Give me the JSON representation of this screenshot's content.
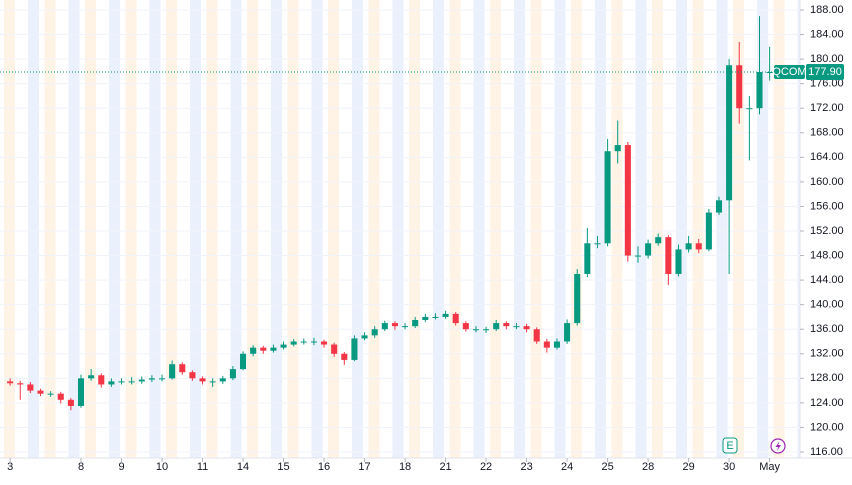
{
  "chart_data": {
    "type": "candlestick",
    "symbol": "QCOM",
    "up_color": "#089981",
    "down_color": "#f23645",
    "last_price": {
      "value": 177.9,
      "label": "177.90"
    },
    "events": [
      {
        "label": "E"
      }
    ],
    "xlim": [
      -1,
      78
    ],
    "xticks": [
      {
        "value": 0,
        "label": "3"
      },
      {
        "value": 7,
        "label": "8"
      },
      {
        "value": 11,
        "label": "9"
      },
      {
        "value": 15,
        "label": "10"
      },
      {
        "value": 19,
        "label": "11"
      },
      {
        "value": 23,
        "label": "14"
      },
      {
        "value": 27,
        "label": "15"
      },
      {
        "value": 31,
        "label": "16"
      },
      {
        "value": 35,
        "label": "17"
      },
      {
        "value": 39,
        "label": "18"
      },
      {
        "value": 43,
        "label": "21"
      },
      {
        "value": 47,
        "label": "22"
      },
      {
        "value": 51,
        "label": "23"
      },
      {
        "value": 55,
        "label": "24"
      },
      {
        "value": 59,
        "label": "25"
      },
      {
        "value": 63,
        "label": "28"
      },
      {
        "value": 67,
        "label": "29"
      },
      {
        "value": 71,
        "label": "30"
      },
      {
        "value": 75,
        "label": "May"
      }
    ],
    "ylim": [
      116,
      188
    ],
    "yticks": [
      {
        "value": 116,
        "label": "116.00"
      },
      {
        "value": 120,
        "label": "120.00"
      },
      {
        "value": 124,
        "label": "124.00"
      },
      {
        "value": 128,
        "label": "128.00"
      },
      {
        "value": 132,
        "label": "132.00"
      },
      {
        "value": 136,
        "label": "136.00"
      },
      {
        "value": 140,
        "label": "140.00"
      },
      {
        "value": 144,
        "label": "144.00"
      },
      {
        "value": 148,
        "label": "148.00"
      },
      {
        "value": 152,
        "label": "152.00"
      },
      {
        "value": 156,
        "label": "156.00"
      },
      {
        "value": 160,
        "label": "160.00"
      },
      {
        "value": 164,
        "label": "164.00"
      },
      {
        "value": 168,
        "label": "168.00"
      },
      {
        "value": 172,
        "label": "172.00"
      },
      {
        "value": 176,
        "label": "176.00"
      },
      {
        "value": 180,
        "label": "180.00"
      },
      {
        "value": 184,
        "label": "184.00"
      },
      {
        "value": 188,
        "label": "188.00"
      }
    ],
    "open": [
      127.5,
      127.2,
      127,
      126,
      125.5,
      125.5,
      124.5,
      123.5,
      128,
      128.5,
      127,
      127.5,
      127.5,
      127.5,
      127.8,
      128,
      128,
      130.3,
      129,
      128,
      127.5,
      127.5,
      128,
      129.5,
      132,
      133,
      132.5,
      133,
      133.5,
      134,
      134,
      134,
      133.5,
      132,
      131,
      134.5,
      135,
      136,
      137,
      136.5,
      136.5,
      137.5,
      138,
      138,
      138.5,
      137,
      136,
      136,
      136,
      137,
      136.5,
      136.5,
      136,
      134,
      133,
      134,
      137,
      145,
      150,
      150,
      165,
      166,
      148,
      148,
      150,
      151,
      145,
      149,
      150,
      149,
      155,
      157,
      179,
      172,
      172,
      177.9
    ],
    "high": [
      128,
      127.6,
      127.4,
      126.3,
      125.9,
      125.8,
      124.8,
      128.6,
      129.5,
      128.8,
      128,
      128,
      128.2,
      128.3,
      128.5,
      128.6,
      130.9,
      130.6,
      129.3,
      128.3,
      128,
      128.4,
      130,
      132.4,
      133.4,
      133.3,
      133.5,
      134,
      134.4,
      134.5,
      134.6,
      134.3,
      133.8,
      132.3,
      135,
      135.5,
      136.5,
      137.4,
      137.3,
      137,
      138,
      138.5,
      138.6,
      139,
      138.8,
      137.3,
      136.5,
      136.4,
      137.5,
      137.3,
      137,
      136.9,
      136.3,
      134.4,
      134.5,
      137.6,
      145.8,
      152.5,
      151.2,
      167,
      170,
      166.5,
      149.5,
      150.6,
      151.6,
      151.3,
      149.8,
      151.2,
      150.7,
      155.6,
      157.6,
      180,
      182.8,
      174,
      187,
      182
    ],
    "low": [
      126.8,
      124.5,
      125.6,
      125.1,
      125,
      123.9,
      122.8,
      123.2,
      127.6,
      126.5,
      126.6,
      127,
      127,
      127.1,
      127.4,
      127.5,
      127.8,
      128.6,
      127.6,
      127,
      126.6,
      127.1,
      127.7,
      129.3,
      131.6,
      132,
      132.2,
      132.7,
      133.2,
      133.5,
      133.4,
      133,
      131.5,
      130.2,
      130.8,
      134.2,
      134.6,
      135.7,
      135.9,
      136,
      136.2,
      137.2,
      137.6,
      137.7,
      136.6,
      135.6,
      135.5,
      135.4,
      135.7,
      136,
      136,
      135.5,
      133.6,
      132.2,
      132.7,
      133.6,
      136.6,
      144.5,
      149.2,
      149.5,
      163,
      147,
      146.8,
      147.5,
      149.6,
      143.2,
      144.6,
      148.5,
      148.4,
      148.7,
      154.6,
      145,
      169.5,
      163.5,
      171,
      176.5
    ],
    "close": [
      127.2,
      127,
      126,
      125.5,
      125.5,
      124.5,
      123.5,
      128,
      128.5,
      127,
      127.5,
      127.5,
      127.5,
      127.8,
      128,
      128,
      130.3,
      129,
      128,
      127.5,
      127.5,
      128,
      129.5,
      132,
      133,
      132.5,
      133,
      133.5,
      134,
      134,
      134,
      133.5,
      132,
      131,
      134.5,
      135,
      136,
      137,
      136.5,
      136.5,
      137.5,
      138,
      138,
      138.5,
      137,
      136,
      136,
      136,
      137,
      136.5,
      136.5,
      136,
      134,
      133,
      134,
      137,
      145,
      150,
      150,
      165,
      166,
      148,
      148,
      150,
      151,
      145,
      149,
      150,
      149,
      155,
      157,
      179,
      172,
      172,
      177.9,
      177.9
    ]
  }
}
